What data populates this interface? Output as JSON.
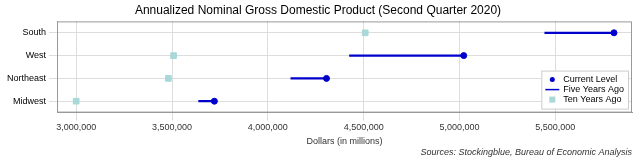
{
  "chart_data": {
    "type": "dumbbell",
    "title": "Annualized Nominal Gross Domestic Product (Second Quarter 2020)",
    "x_label": "Dollars (in millions)",
    "annotation": "Sources: Stockingblue, Bureau of Economic Analysis",
    "orientation": "horizontal",
    "categories": [
      "South",
      "West",
      "Northeast",
      "Midwest"
    ],
    "series": [
      {
        "name": "Current Level",
        "color": "#0000cc",
        "marker": "circle",
        "values": [
          5806000,
          5022000,
          4306000,
          3721000
        ]
      },
      {
        "name": "Five Years Ago",
        "color": "#0000cc",
        "marker": "line",
        "values": [
          5445000,
          4426000,
          4120000,
          3639000
        ]
      },
      {
        "name": "Ten Years Ago",
        "color": "#a8d8d8",
        "marker": "square",
        "values": [
          4508000,
          3508000,
          3481000,
          3000000
        ]
      }
    ],
    "xlim": [
      2900000,
      5900000
    ],
    "xticks": [
      {
        "value": 3000000,
        "label": "3,000,000"
      },
      {
        "value": 3500000,
        "label": "3,500,000"
      },
      {
        "value": 4000000,
        "label": "4,000,000"
      },
      {
        "value": 4500000,
        "label": "4,500,000"
      },
      {
        "value": 5000000,
        "label": "5,000,000"
      },
      {
        "value": 5500000,
        "label": "5,500,000"
      }
    ],
    "grid": true,
    "legend": "bottom-right"
  }
}
